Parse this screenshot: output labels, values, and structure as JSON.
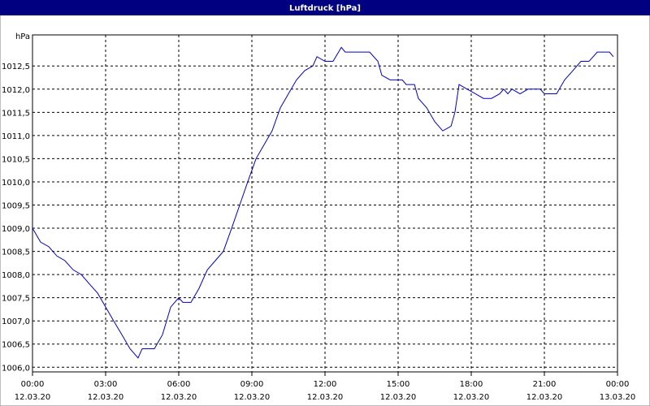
{
  "chart_data": {
    "type": "line",
    "title": "Luftdruck [hPa]",
    "y_label": "hPa",
    "xlim": [
      0,
      24
    ],
    "ylim": [
      1005.9,
      1013.17
    ],
    "grid": true,
    "xticks": [
      {
        "value": 0,
        "label": "00:00",
        "date": "12.03.20"
      },
      {
        "value": 3,
        "label": "03:00",
        "date": "12.03.20"
      },
      {
        "value": 6,
        "label": "06:00",
        "date": "12.03.20"
      },
      {
        "value": 9,
        "label": "09:00",
        "date": "12.03.20"
      },
      {
        "value": 12,
        "label": "12:00",
        "date": "12.03.20"
      },
      {
        "value": 15,
        "label": "15:00",
        "date": "12.03.20"
      },
      {
        "value": 18,
        "label": "18:00",
        "date": "12.03.20"
      },
      {
        "value": 21,
        "label": "21:00",
        "date": "12.03.20"
      },
      {
        "value": 24,
        "label": "00:00",
        "date": "13.03.20"
      }
    ],
    "yticks": [
      {
        "value": 1006,
        "label": "1006,0"
      },
      {
        "value": 1006.5,
        "label": "1006,5"
      },
      {
        "value": 1007,
        "label": "1007,0"
      },
      {
        "value": 1007.5,
        "label": "1007,5"
      },
      {
        "value": 1008,
        "label": "1008,0"
      },
      {
        "value": 1008.5,
        "label": "1008,5"
      },
      {
        "value": 1009,
        "label": "1009,0"
      },
      {
        "value": 1009.5,
        "label": "1009,5"
      },
      {
        "value": 1010,
        "label": "1010,0"
      },
      {
        "value": 1010.5,
        "label": "1010,5"
      },
      {
        "value": 1011,
        "label": "1011,0"
      },
      {
        "value": 1011.5,
        "label": "1011,5"
      },
      {
        "value": 1012,
        "label": "1012,0"
      },
      {
        "value": 1012.5,
        "label": "1012,5"
      }
    ],
    "series": [
      {
        "name": "Luftdruck",
        "color": "#0000cc",
        "x": [
          0,
          0.33,
          0.67,
          1,
          1.33,
          1.67,
          2,
          2.33,
          2.67,
          3,
          3.33,
          3.67,
          4,
          4.33,
          4.5,
          5,
          5.33,
          5.67,
          6,
          6.17,
          6.5,
          6.83,
          7.17,
          7.5,
          7.83,
          8.17,
          8.5,
          8.83,
          9.17,
          9.5,
          9.83,
          10.17,
          10.5,
          10.83,
          11.17,
          11.5,
          11.67,
          12,
          12.33,
          12.67,
          12.83,
          13.83,
          14.17,
          14.33,
          14.67,
          15.17,
          15.33,
          15.67,
          15.83,
          16.17,
          16.5,
          16.83,
          17.17,
          17.33,
          17.5,
          17.83,
          18.17,
          18.5,
          18.83,
          19.17,
          19.33,
          19.5,
          19.67,
          20,
          20.33,
          20.83,
          21,
          21.5,
          21.83,
          22.17,
          22.5,
          22.83,
          23.17,
          23.67,
          23.83
        ],
        "values": [
          1009.0,
          1008.7,
          1008.6,
          1008.4,
          1008.3,
          1008.1,
          1008.0,
          1007.8,
          1007.6,
          1007.3,
          1007.0,
          1006.7,
          1006.4,
          1006.2,
          1006.4,
          1006.4,
          1006.7,
          1007.3,
          1007.5,
          1007.4,
          1007.4,
          1007.7,
          1008.1,
          1008.3,
          1008.5,
          1009.0,
          1009.5,
          1010.0,
          1010.5,
          1010.8,
          1011.1,
          1011.6,
          1011.9,
          1012.2,
          1012.4,
          1012.5,
          1012.7,
          1012.6,
          1012.6,
          1012.9,
          1012.8,
          1012.8,
          1012.6,
          1012.3,
          1012.2,
          1012.2,
          1012.1,
          1012.1,
          1011.8,
          1011.6,
          1011.3,
          1011.1,
          1011.2,
          1011.5,
          1012.1,
          1012.0,
          1011.9,
          1011.8,
          1011.8,
          1011.9,
          1012.0,
          1011.9,
          1012.0,
          1011.9,
          1012.0,
          1012.0,
          1011.9,
          1011.9,
          1012.2,
          1012.4,
          1012.6,
          1012.6,
          1012.8,
          1012.8,
          1012.7
        ]
      }
    ]
  }
}
